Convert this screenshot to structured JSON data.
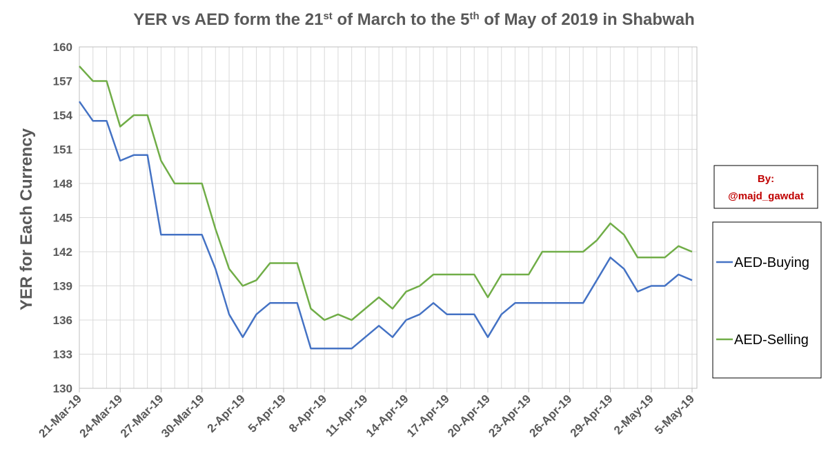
{
  "chart_data": {
    "type": "line",
    "title": [
      "YER vs AED form the 21",
      "st",
      " of March to the 5",
      "th",
      " of May of 2019 in Shabwah"
    ],
    "ylabel": "YER for Each Currency",
    "annotation": [
      "By:",
      "@majd_gawdat"
    ],
    "categories": [
      "21-Mar-19",
      null,
      null,
      "24-Mar-19",
      null,
      null,
      "27-Mar-19",
      null,
      null,
      "30-Mar-19",
      null,
      null,
      "2-Apr-19",
      null,
      null,
      "5-Apr-19",
      null,
      null,
      "8-Apr-19",
      null,
      null,
      "11-Apr-19",
      null,
      null,
      "14-Apr-19",
      null,
      null,
      "17-Apr-19",
      null,
      null,
      "20-Apr-19",
      null,
      null,
      "23-Apr-19",
      null,
      null,
      "26-Apr-19",
      null,
      null,
      "29-Apr-19",
      null,
      null,
      "2-May-19",
      null,
      null,
      "5-May-19"
    ],
    "series": [
      {
        "name": "AED-Buying",
        "color": "#4472c4",
        "values": [
          155.2,
          153.5,
          153.5,
          150,
          150.5,
          150.5,
          143.5,
          143.5,
          143.5,
          143.5,
          140.5,
          136.5,
          134.5,
          136.5,
          137.5,
          137.5,
          137.5,
          133.5,
          133.5,
          133.5,
          133.5,
          134.5,
          135.5,
          134.5,
          136,
          136.5,
          137.5,
          136.5,
          136.5,
          136.5,
          134.5,
          136.5,
          137.5,
          137.5,
          137.5,
          137.5,
          137.5,
          137.5,
          139.5,
          141.5,
          140.5,
          138.5,
          139,
          139,
          140,
          139.5
        ]
      },
      {
        "name": "AED-Selling",
        "color": "#70ad47",
        "values": [
          158.3,
          157,
          157,
          153,
          154,
          154,
          150,
          148,
          148,
          148,
          144,
          140.5,
          139,
          139.5,
          141,
          141,
          141,
          137,
          136,
          136.5,
          136,
          137,
          138,
          137,
          138.5,
          139,
          140,
          140,
          140,
          140,
          138,
          140,
          140,
          140,
          142,
          142,
          142,
          142,
          143,
          144.5,
          143.5,
          141.5,
          141.5,
          141.5,
          142.5,
          142
        ]
      }
    ],
    "ylim": [
      130,
      160
    ],
    "yticks": [
      130,
      133,
      136,
      139,
      142,
      145,
      148,
      151,
      154,
      157,
      160
    ],
    "grid": true
  }
}
